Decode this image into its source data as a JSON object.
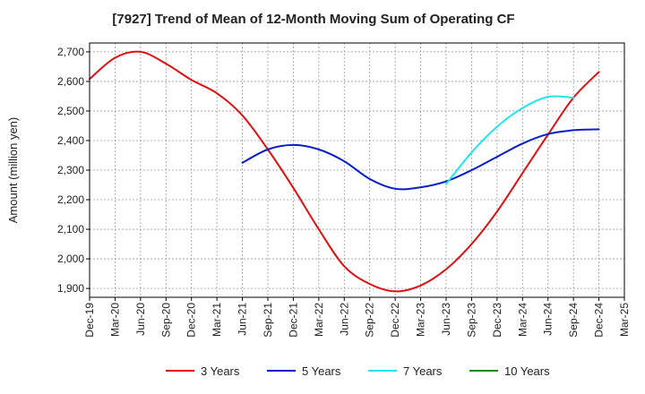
{
  "chart_data": {
    "type": "line",
    "title": "[7927]  Trend of Mean of 12-Month Moving Sum of Operating CF",
    "xlabel": "",
    "ylabel": "Amount (million yen)",
    "ylim": [
      1870,
      2730
    ],
    "yticks": [
      1900,
      2000,
      2100,
      2200,
      2300,
      2400,
      2500,
      2600,
      2700
    ],
    "ytick_labels": [
      "1,900",
      "2,000",
      "2,100",
      "2,200",
      "2,300",
      "2,400",
      "2,500",
      "2,600",
      "2,700"
    ],
    "x_categories": [
      "Dec-19",
      "Mar-20",
      "Jun-20",
      "Sep-20",
      "Dec-20",
      "Mar-21",
      "Jun-21",
      "Sep-21",
      "Dec-21",
      "Mar-22",
      "Jun-22",
      "Sep-22",
      "Dec-22",
      "Mar-23",
      "Jun-23",
      "Sep-23",
      "Dec-23",
      "Mar-24",
      "Jun-24",
      "Sep-24",
      "Dec-24",
      "Mar-25"
    ],
    "grid": true,
    "legend_position": "bottom",
    "series": [
      {
        "name": "3 Years",
        "color": "#dd1111",
        "start_index": 0,
        "values": [
          2608,
          2680,
          2700,
          2660,
          2605,
          2560,
          2485,
          2370,
          2240,
          2100,
          1975,
          1915,
          1890,
          1910,
          1965,
          2050,
          2160,
          2290,
          2420,
          2545,
          2632
        ]
      },
      {
        "name": "5 Years",
        "color": "#0a1ec8",
        "start_index": 6,
        "values": [
          2325,
          2370,
          2385,
          2370,
          2330,
          2270,
          2237,
          2242,
          2262,
          2300,
          2345,
          2390,
          2422,
          2435,
          2438
        ]
      },
      {
        "name": "7 Years",
        "color": "#22e5ea",
        "start_index": 14,
        "values": [
          2253,
          2360,
          2447,
          2510,
          2548,
          2545
        ]
      },
      {
        "name": "10 Years",
        "color": "#1e8a1e",
        "start_index": 0,
        "values": []
      }
    ]
  }
}
